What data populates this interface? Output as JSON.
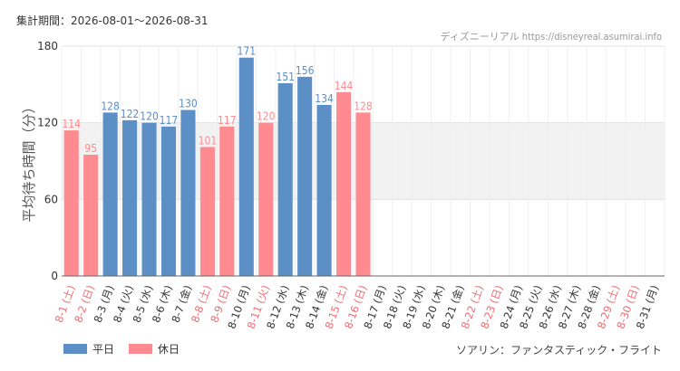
{
  "header": {
    "period_label": "集計期間：2026-08-01～2026-08-31",
    "watermark": "ディズニーリアル https://disneyreal.asumirai.info"
  },
  "footer": {
    "attraction": "ソアリン：ファンタスティック・フライト"
  },
  "colors": {
    "weekday": "#5b8fc6",
    "holiday": "#ff8a8f",
    "highlight_band": "#f2f2f2",
    "grid": "#e3e3e3",
    "axis": "#666666"
  },
  "chart_data": {
    "type": "bar",
    "ylabel": "平均待ち時間（分）",
    "ylim": [
      0,
      180
    ],
    "yticks": [
      0,
      60,
      120,
      180
    ],
    "highlight_band": [
      60,
      120
    ],
    "legend": [
      {
        "name": "平日",
        "color": "#5b8fc6"
      },
      {
        "name": "休日",
        "color": "#ff8a8f"
      }
    ],
    "categories": [
      "8-1 (土)",
      "8-2 (日)",
      "8-3 (月)",
      "8-4 (火)",
      "8-5 (水)",
      "8-6 (木)",
      "8-7 (金)",
      "8-8 (土)",
      "8-9 (日)",
      "8-10 (月)",
      "8-11 (火)",
      "8-12 (水)",
      "8-13 (木)",
      "8-14 (金)",
      "8-15 (土)",
      "8-16 (日)",
      "8-17 (月)",
      "8-18 (火)",
      "8-19 (水)",
      "8-20 (木)",
      "8-21 (金)",
      "8-22 (土)",
      "8-23 (日)",
      "8-24 (月)",
      "8-25 (火)",
      "8-26 (水)",
      "8-27 (木)",
      "8-28 (金)",
      "8-29 (土)",
      "8-30 (日)",
      "8-31 (月)"
    ],
    "holiday": [
      true,
      true,
      false,
      false,
      false,
      false,
      false,
      true,
      true,
      false,
      true,
      false,
      false,
      false,
      true,
      true,
      false,
      false,
      false,
      false,
      false,
      true,
      true,
      false,
      false,
      false,
      false,
      false,
      true,
      true,
      false
    ],
    "values": [
      114,
      95,
      128,
      122,
      120,
      117,
      130,
      101,
      117,
      171,
      120,
      151,
      156,
      134,
      144,
      128,
      null,
      null,
      null,
      null,
      null,
      null,
      null,
      null,
      null,
      null,
      null,
      null,
      null,
      null,
      null
    ]
  }
}
